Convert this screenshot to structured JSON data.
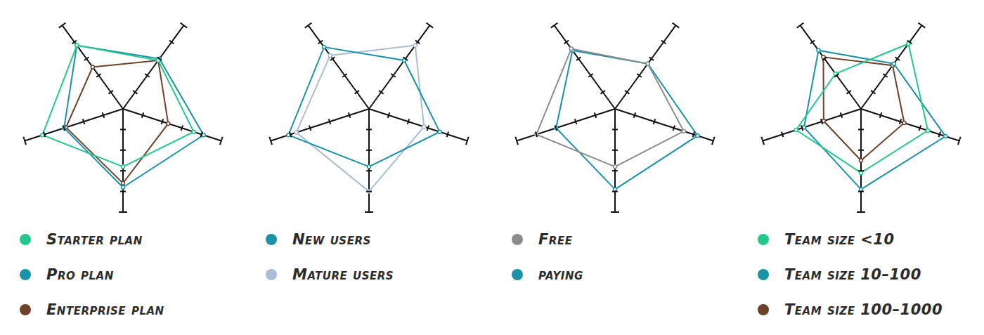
{
  "chart_data": [
    {
      "type": "radar",
      "categories": [
        null,
        null,
        null,
        null,
        null
      ],
      "ylim": [
        0,
        5
      ],
      "yticks": [
        1,
        2,
        3,
        4,
        5
      ],
      "grid": false,
      "tick_labels": false,
      "legend": "bottom",
      "series": [
        {
          "name": "Starter plan",
          "color": "#22c98b",
          "values": [
            2.8,
            4.1,
            3.8,
            2.9,
            3.6
          ]
        },
        {
          "name": "Pro plan",
          "color": "#1a93a8",
          "values": [
            3.8,
            3.0,
            3.8,
            3.0,
            4.1
          ]
        },
        {
          "name": "Enterprise plan",
          "color": "#6e4128",
          "values": [
            3.6,
            2.9,
            2.5,
            2.9,
            2.3
          ]
        }
      ]
    },
    {
      "type": "radar",
      "categories": [
        null,
        null,
        null,
        null,
        null
      ],
      "ylim": [
        0,
        5
      ],
      "yticks": [
        1,
        2,
        3,
        4,
        5
      ],
      "grid": false,
      "tick_labels": false,
      "legend": "bottom",
      "series": [
        {
          "name": "New users",
          "color": "#1a93a8",
          "values": [
            2.8,
            4.1,
            3.7,
            2.9,
            3.6
          ]
        },
        {
          "name": "Mature users",
          "color": "#a9bdd6",
          "values": [
            4.0,
            3.7,
            3.2,
            3.8,
            2.8
          ]
        }
      ]
    },
    {
      "type": "radar",
      "categories": [
        null,
        null,
        null,
        null,
        null
      ],
      "ylim": [
        0,
        5
      ],
      "yticks": [
        1,
        2,
        3,
        4,
        5
      ],
      "grid": false,
      "tick_labels": false,
      "legend": "bottom",
      "series": [
        {
          "name": "Free",
          "color": "#8c8c8c",
          "values": [
            2.8,
            4.0,
            3.6,
            2.7,
            3.5
          ]
        },
        {
          "name": "paying",
          "color": "#1a93a8",
          "values": [
            3.9,
            3.0,
            3.5,
            2.7,
            4.2
          ]
        }
      ]
    },
    {
      "type": "radar",
      "categories": [
        null,
        null,
        null,
        null,
        null
      ],
      "ylim": [
        0,
        5
      ],
      "yticks": [
        1,
        2,
        3,
        4,
        5
      ],
      "grid": false,
      "tick_labels": false,
      "legend": "bottom",
      "series": [
        {
          "name": "Team size <10",
          "color": "#22c98b",
          "values": [
            3.1,
            3.3,
            2.1,
            3.9,
            3.4
          ]
        },
        {
          "name": "Team size 10–100",
          "color": "#1a93a8",
          "values": [
            3.9,
            2.9,
            3.5,
            2.7,
            4.3
          ]
        },
        {
          "name": "Team size 100–1000",
          "color": "#6e4128",
          "values": [
            2.5,
            1.9,
            3.1,
            2.6,
            2.2
          ]
        }
      ]
    }
  ]
}
